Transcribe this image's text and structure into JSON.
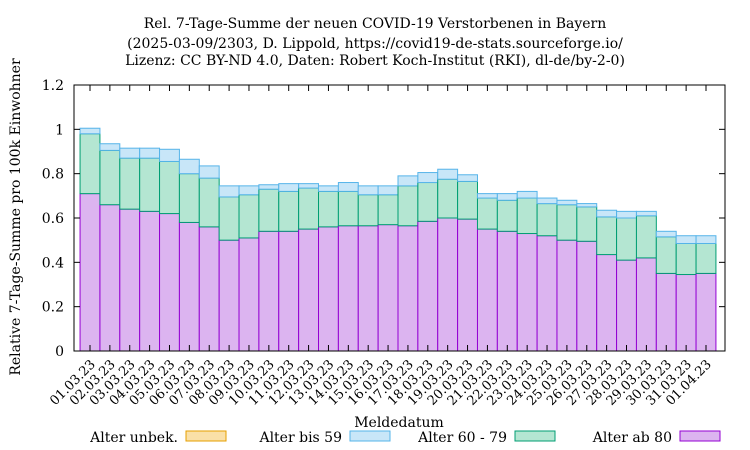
{
  "chart_data": {
    "type": "bar",
    "stacked": true,
    "title_lines": [
      "Rel. 7-Tage-Summe der neuen COVID-19 Verstorbenen in Bayern",
      "(2025-03-09/2303, D. Lippold, https://covid19-de-stats.sourceforge.io/",
      "Lizenz: CC BY-ND 4.0, Daten: Robert Koch-Institut (RKI), dl-de/by-2-0)"
    ],
    "xlabel": "Meldedatum",
    "ylabel": "Relative 7-Tage-Summe pro 100k Einwohner",
    "ylim": [
      0,
      1.2
    ],
    "yticks": [
      "0",
      "0.2",
      "0.4",
      "0.6",
      "0.8",
      "1",
      "1.2"
    ],
    "categories": [
      "01.03.23",
      "02.03.23",
      "03.03.23",
      "04.03.23",
      "05.03.23",
      "06.03.23",
      "07.03.23",
      "08.03.23",
      "09.03.23",
      "10.03.23",
      "11.03.23",
      "12.03.23",
      "13.03.23",
      "14.03.23",
      "15.03.23",
      "16.03.23",
      "17.03.23",
      "18.03.23",
      "19.03.23",
      "20.03.23",
      "21.03.23",
      "22.03.23",
      "23.03.23",
      "24.03.23",
      "25.03.23",
      "26.03.23",
      "27.03.23",
      "28.03.23",
      "29.03.23",
      "30.03.23",
      "31.03.23",
      "01.04.23"
    ],
    "series": [
      {
        "name": "Alter ab 80",
        "color": "#dcb4f0",
        "edge": "#9400d3",
        "values": [
          0.71,
          0.66,
          0.64,
          0.63,
          0.62,
          0.58,
          0.56,
          0.5,
          0.51,
          0.54,
          0.54,
          0.55,
          0.56,
          0.565,
          0.565,
          0.57,
          0.565,
          0.585,
          0.6,
          0.595,
          0.55,
          0.54,
          0.53,
          0.52,
          0.5,
          0.495,
          0.435,
          0.41,
          0.42,
          0.35,
          0.345,
          0.35
        ]
      },
      {
        "name": "Alter 60 - 79",
        "color": "#b4e6d2",
        "edge": "#009e73",
        "values": [
          0.27,
          0.245,
          0.23,
          0.24,
          0.235,
          0.22,
          0.22,
          0.195,
          0.195,
          0.19,
          0.18,
          0.185,
          0.16,
          0.155,
          0.14,
          0.135,
          0.18,
          0.175,
          0.175,
          0.17,
          0.14,
          0.14,
          0.16,
          0.145,
          0.16,
          0.155,
          0.17,
          0.19,
          0.19,
          0.165,
          0.14,
          0.135
        ]
      },
      {
        "name": "Alter bis 59",
        "color": "#c8e6f8",
        "edge": "#56b4e9",
        "values": [
          0.025,
          0.03,
          0.045,
          0.045,
          0.055,
          0.065,
          0.055,
          0.05,
          0.04,
          0.02,
          0.035,
          0.02,
          0.025,
          0.04,
          0.04,
          0.04,
          0.045,
          0.045,
          0.045,
          0.03,
          0.02,
          0.03,
          0.03,
          0.025,
          0.02,
          0.015,
          0.03,
          0.03,
          0.02,
          0.025,
          0.035,
          0.035
        ]
      },
      {
        "name": "Alter unbek.",
        "color": "#fae0a8",
        "edge": "#e69f00",
        "values": [
          0,
          0,
          0,
          0,
          0,
          0,
          0,
          0,
          0,
          0,
          0,
          0,
          0,
          0,
          0,
          0,
          0,
          0,
          0,
          0,
          0,
          0,
          0,
          0,
          0,
          0,
          0,
          0,
          0,
          0,
          0,
          0
        ]
      }
    ],
    "legend": [
      {
        "name": "Alter unbek.",
        "color": "#fae0a8",
        "edge": "#e69f00"
      },
      {
        "name": "Alter bis 59",
        "color": "#c8e6f8",
        "edge": "#56b4e9"
      },
      {
        "name": "Alter 60 - 79",
        "color": "#b4e6d2",
        "edge": "#009e73"
      },
      {
        "name": "Alter ab 80",
        "color": "#dcb4f0",
        "edge": "#9400d3"
      }
    ],
    "legend_position": "bottom"
  }
}
